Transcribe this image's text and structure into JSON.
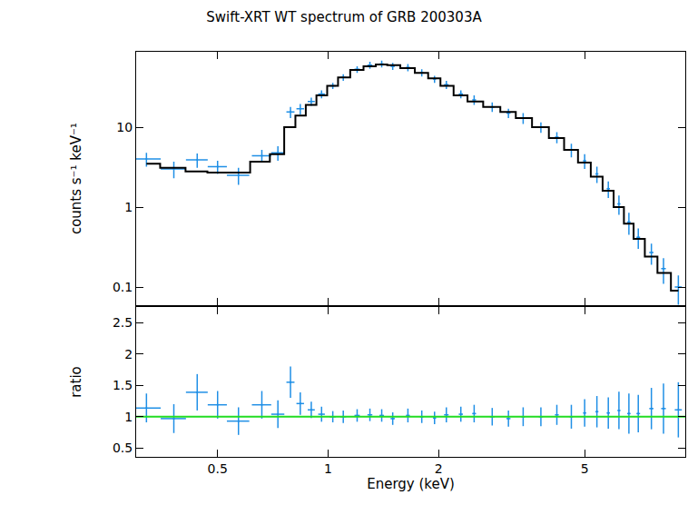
{
  "chart_data": [
    {
      "type": "scatter",
      "title": "Swift-XRT WT spectrum of GRB 200303A",
      "y_label": "counts s⁻¹ keV⁻¹",
      "log": true,
      "xlim": [
        0.3,
        9.4
      ],
      "xticks": [
        0.5,
        1,
        2,
        5
      ],
      "ylim": [
        0.059,
        88
      ],
      "yticks": [
        0.1,
        1,
        10
      ],
      "tick_labels": "y",
      "series": [
        {
          "type": "scatter",
          "marker": "cross",
          "color": "#1f8fe6",
          "x": [
            0.32,
            0.38,
            0.44,
            0.5,
            0.57,
            0.66,
            0.73,
            0.79,
            0.84,
            0.9,
            0.96,
            1.03,
            1.1,
            1.2,
            1.3,
            1.4,
            1.5,
            1.65,
            1.8,
            1.95,
            2.1,
            2.3,
            2.5,
            2.8,
            3.1,
            3.4,
            3.8,
            4.2,
            4.6,
            5.0,
            5.4,
            5.8,
            6.2,
            6.6,
            7.0,
            7.6,
            8.2,
            9.0
          ],
          "values": [
            4.0,
            3.0,
            3.9,
            3.2,
            2.5,
            4.4,
            4.8,
            15.5,
            17,
            21,
            26,
            33,
            42,
            53,
            60,
            62,
            58,
            56,
            48,
            40,
            34,
            26,
            22,
            18,
            15,
            13,
            10,
            7.5,
            5.2,
            3.8,
            2.6,
            1.7,
            1.1,
            0.65,
            0.42,
            0.27,
            0.17,
            0.1
          ],
          "errors": [
            0.8,
            0.7,
            0.8,
            0.6,
            0.6,
            0.8,
            1.0,
            2.5,
            2.5,
            2.5,
            3,
            3,
            4,
            5,
            6,
            6,
            6,
            6,
            5,
            4,
            4,
            3,
            3,
            2.5,
            2,
            2,
            1.5,
            1.2,
            1.0,
            0.8,
            0.6,
            0.4,
            0.3,
            0.2,
            0.12,
            0.08,
            0.06,
            0.04
          ],
          "x_errors": [
            0.03,
            0.03,
            0.03,
            0.03,
            0.04,
            0.04,
            0.03,
            0.02,
            0.02,
            0.02,
            0.02,
            0.02,
            0.02,
            0.02,
            0.02,
            0.02,
            0.02,
            0.02,
            0.02,
            0.02,
            0.03,
            0.03,
            0.03,
            0.04,
            0.04,
            0.04,
            0.05,
            0.05,
            0.05,
            0.05,
            0.05,
            0.06,
            0.06,
            0.07,
            0.08,
            0.1,
            0.12,
            0.2
          ]
        },
        {
          "type": "line",
          "line_style": "steps",
          "color": "#000000",
          "x": [
            0.32,
            0.38,
            0.44,
            0.5,
            0.57,
            0.66,
            0.73,
            0.79,
            0.84,
            0.9,
            0.96,
            1.03,
            1.1,
            1.2,
            1.3,
            1.4,
            1.5,
            1.65,
            1.8,
            1.95,
            2.1,
            2.3,
            2.5,
            2.8,
            3.1,
            3.4,
            3.8,
            4.2,
            4.6,
            5.0,
            5.4,
            5.8,
            6.2,
            6.6,
            7.0,
            7.6,
            8.2,
            9.0
          ],
          "values": [
            3.5,
            3.1,
            2.8,
            2.7,
            2.7,
            3.7,
            4.6,
            10,
            14,
            19,
            25,
            33,
            42,
            52,
            58,
            61,
            60,
            55,
            48,
            41,
            33,
            25,
            21,
            18,
            15.5,
            13,
            10,
            7.3,
            5.2,
            3.6,
            2.4,
            1.6,
            1.0,
            0.62,
            0.4,
            0.24,
            0.15,
            0.09
          ]
        }
      ]
    },
    {
      "type": "scatter",
      "x_label": "Energy (keV)",
      "y_label": "ratio",
      "log": "x",
      "xlim": [
        0.3,
        9.4
      ],
      "xticks": [
        0.5,
        1,
        2,
        5
      ],
      "ylim": [
        0.36,
        2.75
      ],
      "yticks": [
        0.5,
        1,
        1.5,
        2,
        2.5
      ],
      "series": [
        {
          "type": "scatter",
          "marker": "cross",
          "color": "#1f8fe6",
          "x": [
            0.32,
            0.38,
            0.44,
            0.5,
            0.57,
            0.66,
            0.73,
            0.79,
            0.84,
            0.9,
            0.96,
            1.03,
            1.1,
            1.2,
            1.3,
            1.4,
            1.5,
            1.65,
            1.8,
            1.95,
            2.1,
            2.3,
            2.5,
            2.8,
            3.1,
            3.4,
            3.8,
            4.2,
            4.6,
            5.0,
            5.4,
            5.8,
            6.2,
            6.6,
            7.0,
            7.6,
            8.2,
            9.0
          ],
          "values": [
            1.14,
            0.97,
            1.39,
            1.19,
            0.93,
            1.19,
            1.04,
            1.55,
            1.21,
            1.11,
            1.04,
            1.0,
            1.0,
            1.02,
            1.03,
            1.02,
            0.97,
            1.02,
            1.0,
            0.98,
            1.03,
            1.04,
            1.05,
            1.0,
            0.97,
            1.0,
            1.0,
            1.03,
            1.0,
            1.06,
            1.08,
            1.06,
            1.1,
            1.05,
            1.05,
            1.13,
            1.13,
            1.11
          ],
          "errors": [
            0.23,
            0.23,
            0.29,
            0.22,
            0.22,
            0.22,
            0.22,
            0.25,
            0.18,
            0.13,
            0.12,
            0.09,
            0.1,
            0.1,
            0.1,
            0.1,
            0.1,
            0.11,
            0.1,
            0.1,
            0.12,
            0.12,
            0.14,
            0.14,
            0.13,
            0.15,
            0.15,
            0.16,
            0.19,
            0.22,
            0.25,
            0.25,
            0.3,
            0.32,
            0.3,
            0.33,
            0.4,
            0.44
          ],
          "x_errors": [
            0.03,
            0.03,
            0.03,
            0.03,
            0.04,
            0.04,
            0.03,
            0.02,
            0.02,
            0.02,
            0.02,
            0.02,
            0.02,
            0.02,
            0.02,
            0.02,
            0.02,
            0.02,
            0.02,
            0.02,
            0.03,
            0.03,
            0.03,
            0.04,
            0.04,
            0.04,
            0.05,
            0.05,
            0.05,
            0.05,
            0.05,
            0.06,
            0.06,
            0.07,
            0.08,
            0.1,
            0.12,
            0.2
          ]
        },
        {
          "type": "line",
          "color": "#22dd22",
          "x": [
            0.3,
            9.4
          ],
          "values": [
            1,
            1
          ]
        }
      ]
    }
  ]
}
